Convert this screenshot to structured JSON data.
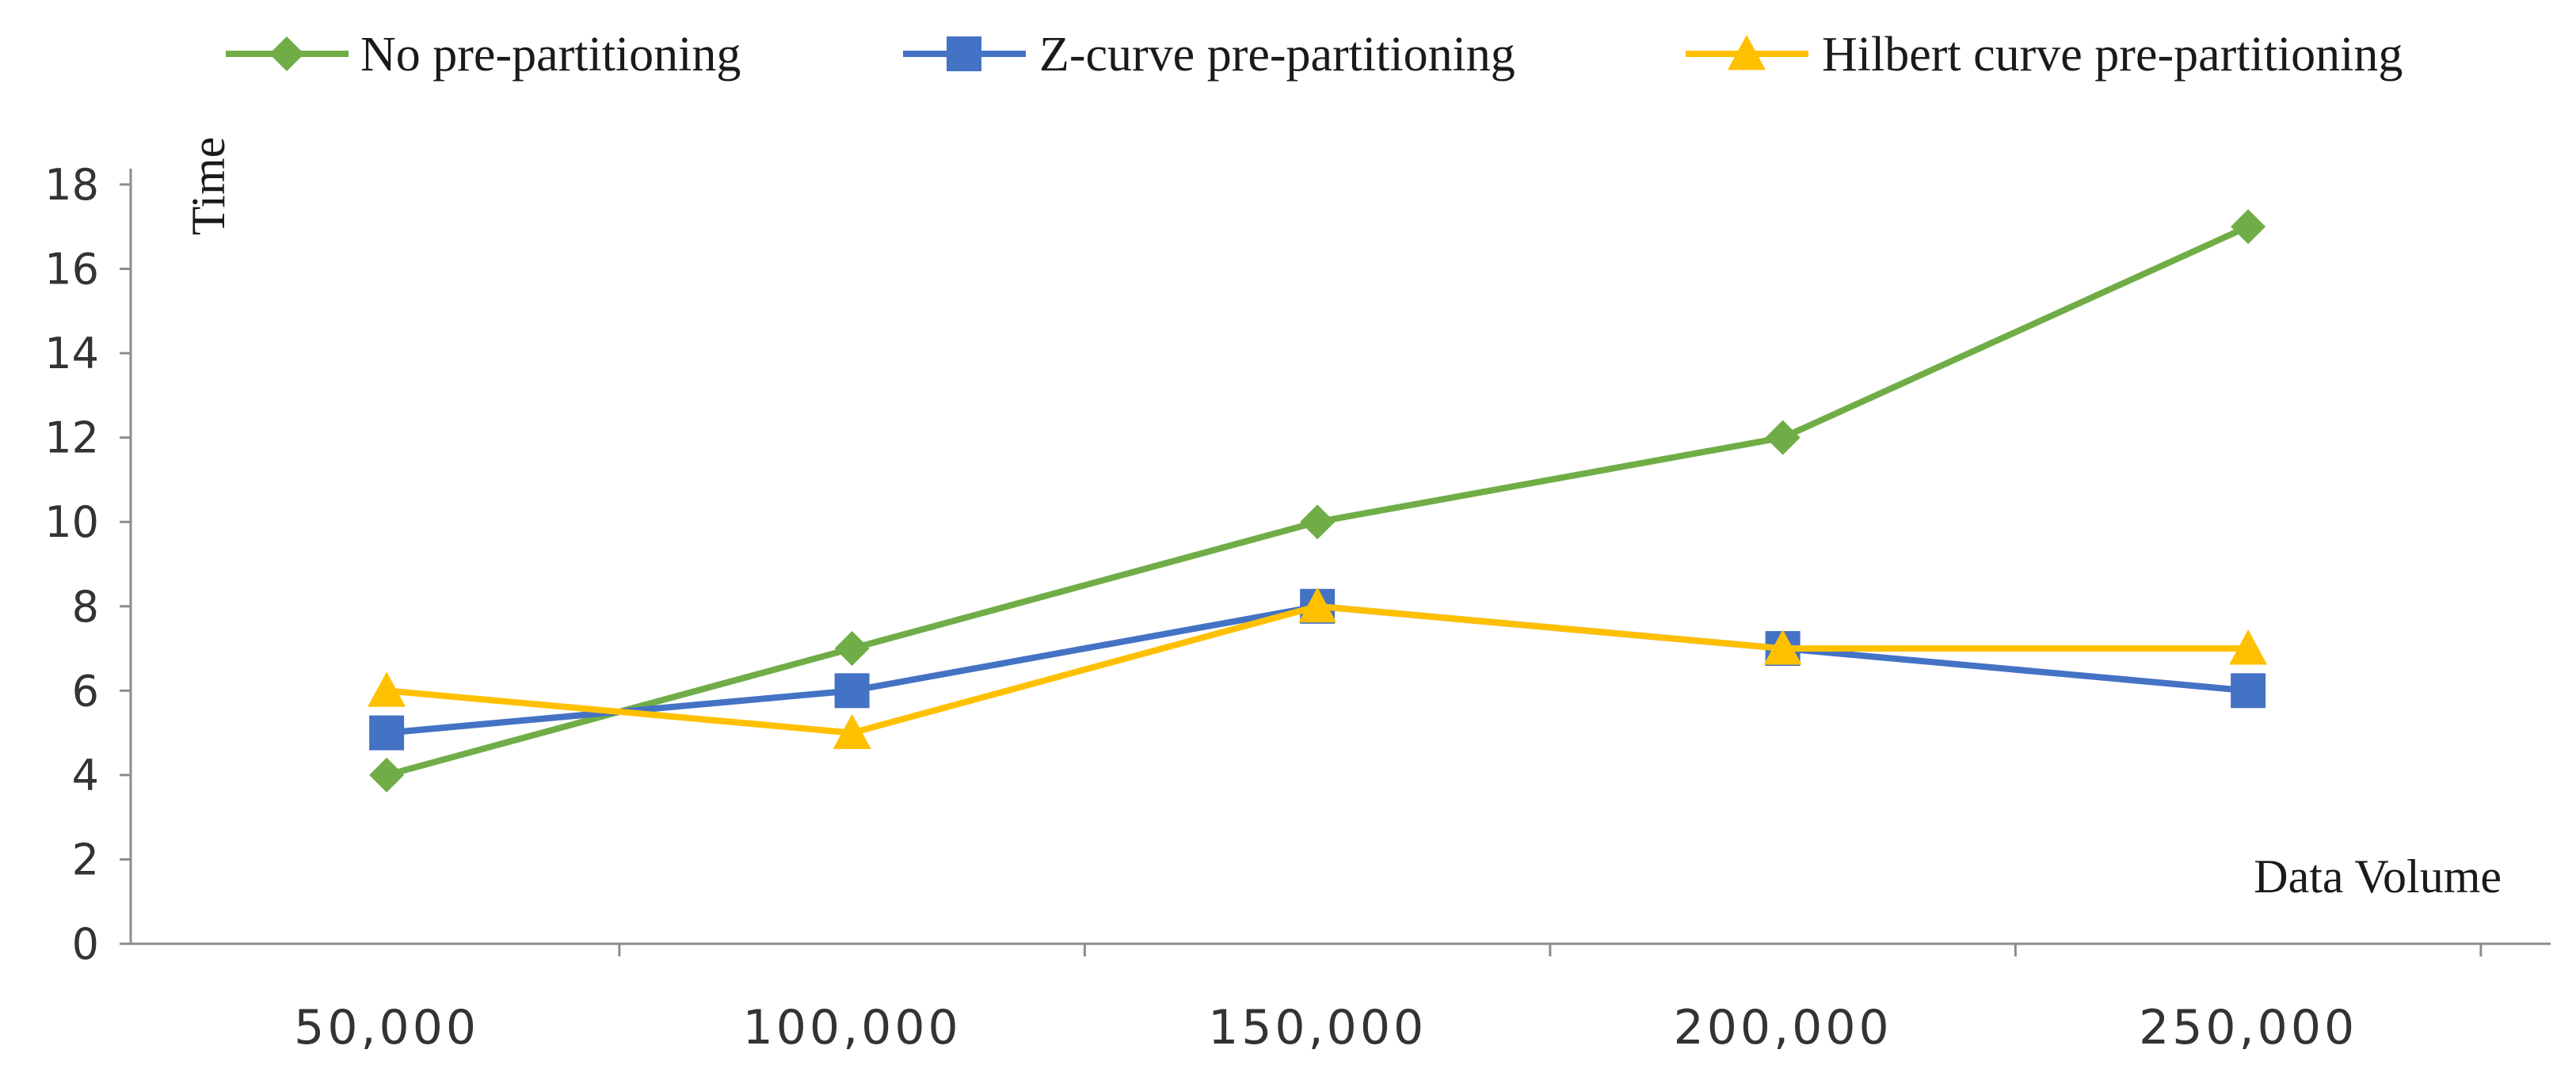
{
  "chart_data": {
    "type": "line",
    "title": "",
    "xlabel": "Data Volume",
    "ylabel": "Time",
    "categories": [
      "50,000",
      "100,000",
      "150,000",
      "200,000",
      "250,000"
    ],
    "ylim": [
      0,
      18
    ],
    "yticks": [
      0,
      2,
      4,
      6,
      8,
      10,
      12,
      14,
      16,
      18
    ],
    "grid": false,
    "legend_position": "top",
    "series": [
      {
        "name": "No pre-partitioning",
        "values": [
          4,
          7,
          10,
          12,
          17
        ],
        "color": "#70ad47",
        "marker": "diamond"
      },
      {
        "name": "Z-curve pre-partitioning",
        "values": [
          5,
          6,
          8,
          7,
          6
        ],
        "color": "#4472c4",
        "marker": "square"
      },
      {
        "name": "Hilbert curve pre-partitioning",
        "values": [
          6,
          5,
          8,
          7,
          7
        ],
        "color": "#ffc000",
        "marker": "triangle"
      }
    ]
  }
}
